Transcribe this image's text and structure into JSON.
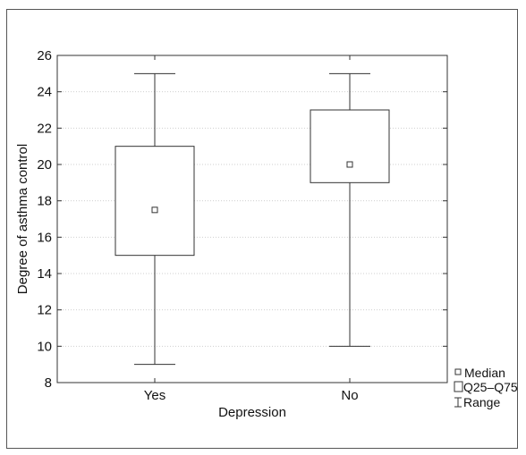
{
  "chart_data": {
    "type": "boxplot",
    "xlabel": "Depression",
    "ylabel": "Degree of asthma control",
    "ylim": [
      8,
      26
    ],
    "yticks": [
      8,
      10,
      12,
      14,
      16,
      18,
      20,
      22,
      24,
      26
    ],
    "grid": true,
    "legend_position": "bottom-right",
    "categories": [
      "Yes",
      "No"
    ],
    "boxes": [
      {
        "category": "Yes",
        "min": 9,
        "q25": 15,
        "median": 17.5,
        "q75": 21,
        "max": 25
      },
      {
        "category": "No",
        "min": 10,
        "q25": 19,
        "median": 20,
        "q75": 23,
        "max": 25
      }
    ],
    "legend": [
      {
        "symbol": "small-square",
        "label": "Median"
      },
      {
        "symbol": "box",
        "label": "Q25–Q75"
      },
      {
        "symbol": "whisker",
        "label": "Range"
      }
    ],
    "colors": {
      "line": "#333333",
      "grid": "#cfcfcf",
      "background": "#ffffff"
    }
  }
}
